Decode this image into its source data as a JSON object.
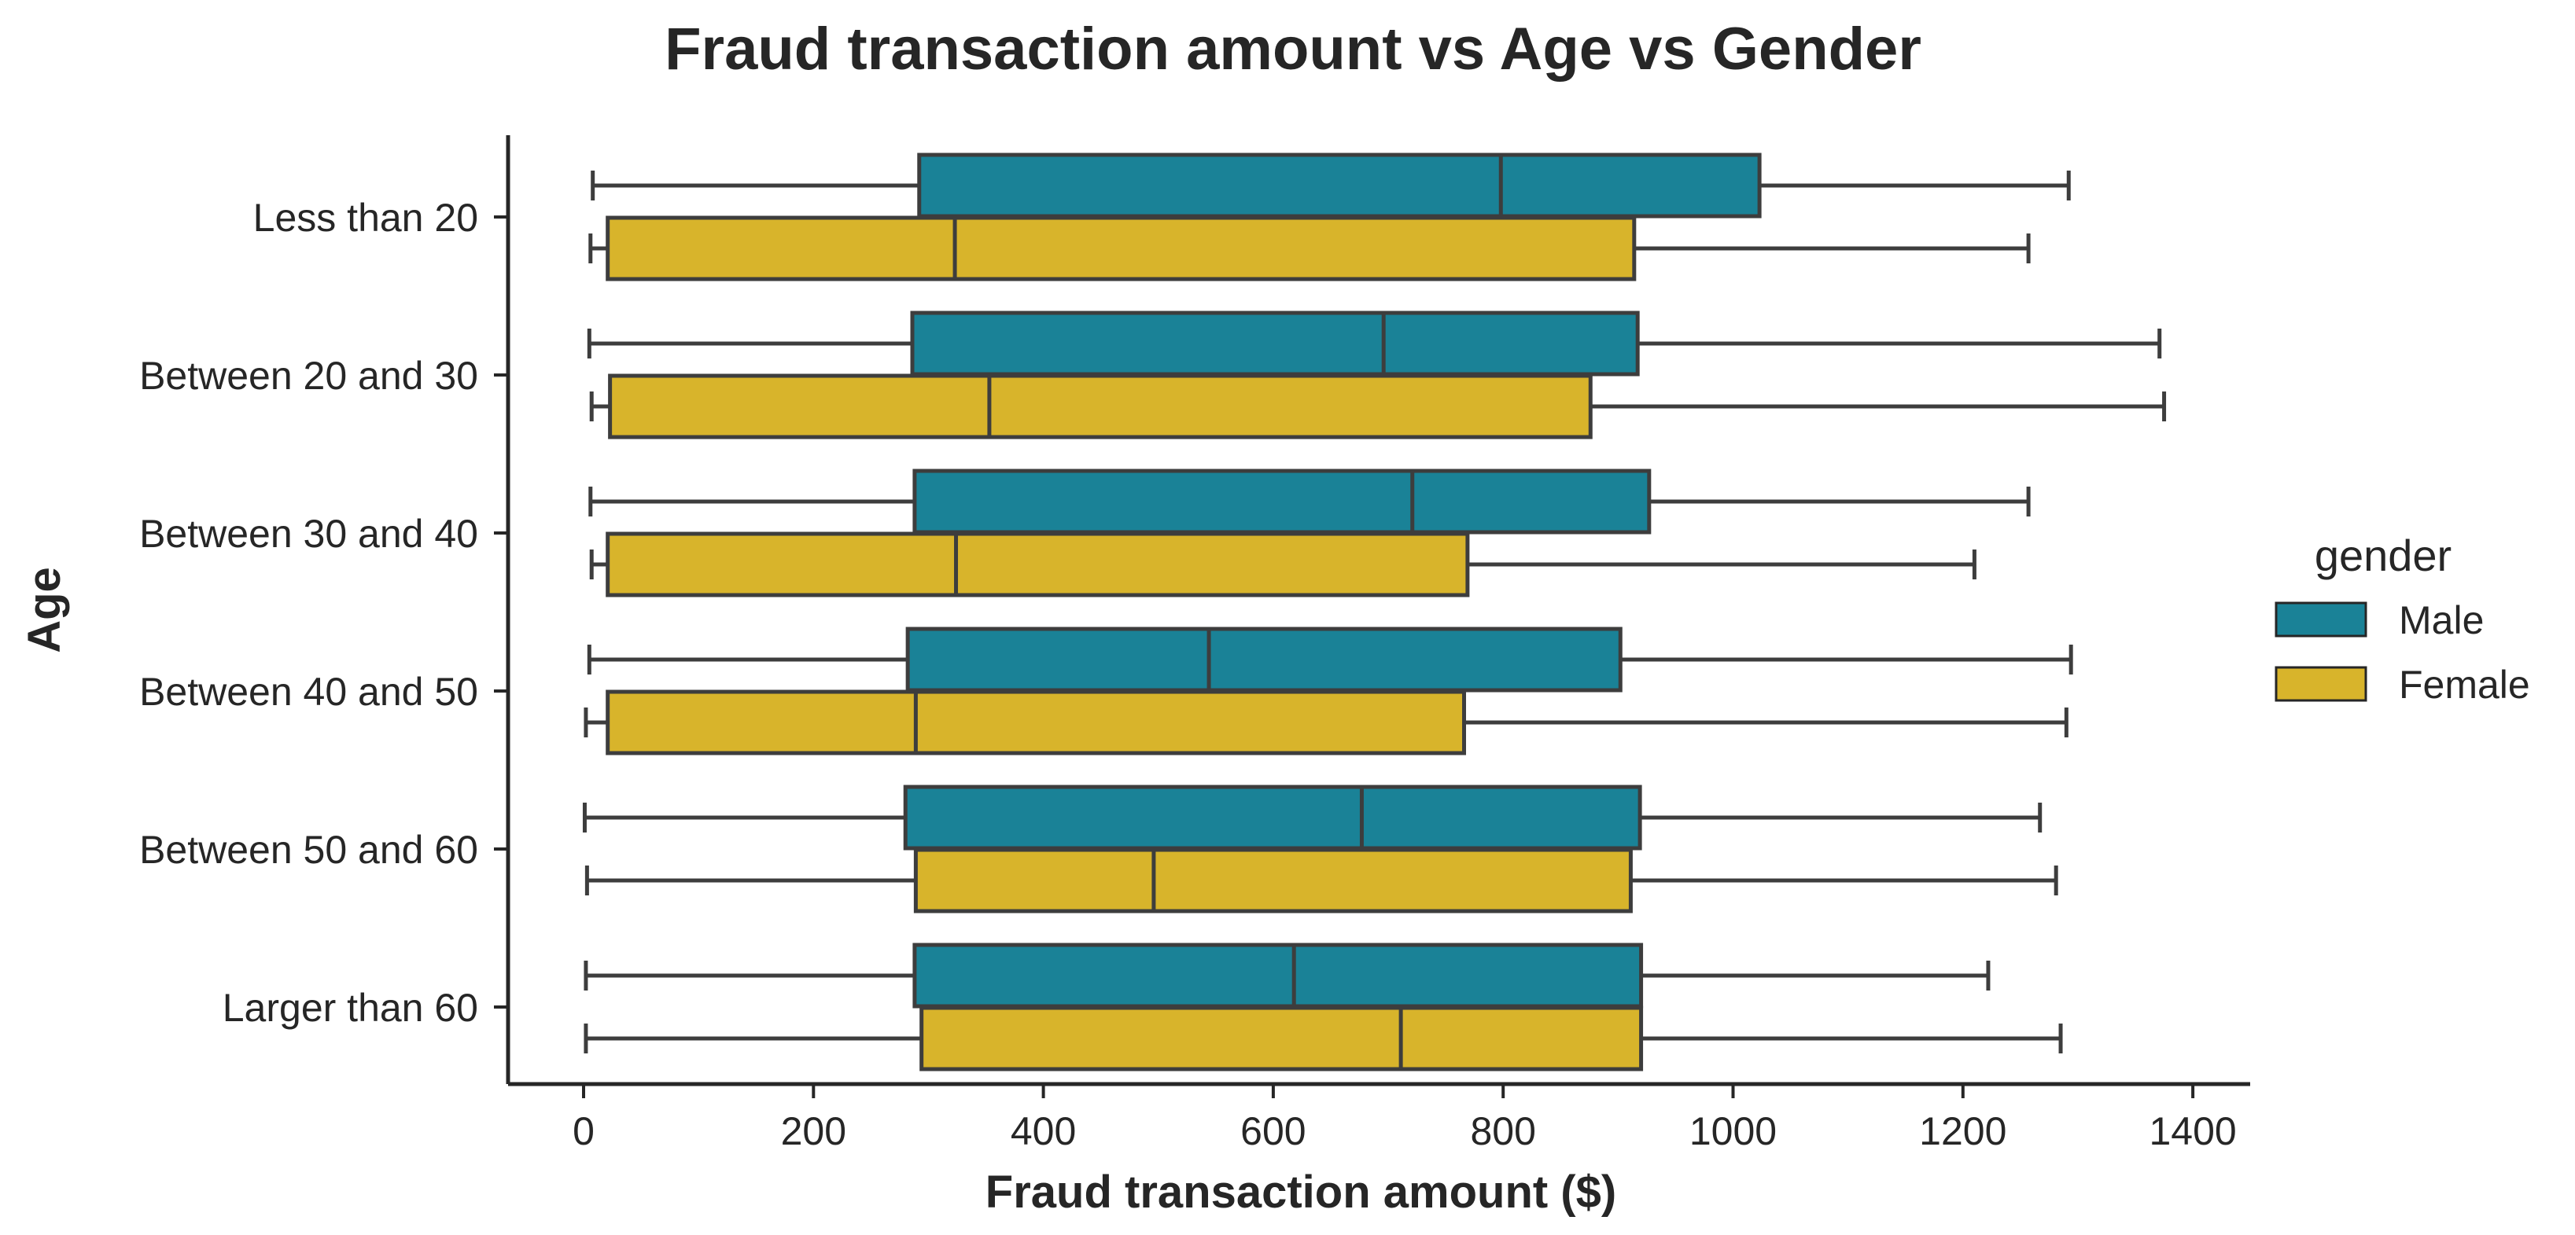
{
  "chart_data": {
    "type": "box",
    "orientation": "horizontal",
    "title": "Fraud transaction amount vs Age vs Gender",
    "xlabel": "Fraud transaction amount ($)",
    "ylabel": "Age",
    "xlim": [
      -68,
      1450
    ],
    "xticks": [
      0,
      200,
      400,
      600,
      800,
      1000,
      1200,
      1400
    ],
    "categories": [
      "Less than 20",
      "Between 20 and 30",
      "Between 30 and 40",
      "Between 40 and 50",
      "Between 50 and 60",
      "Larger than 60"
    ],
    "legend": {
      "title": "gender",
      "position": "right"
    },
    "grid": false,
    "series": [
      {
        "name": "Male",
        "color": "#1a8297",
        "boxes": [
          {
            "whislo": 8,
            "q1": 292,
            "median": 798,
            "q3": 1023,
            "whishi": 1292
          },
          {
            "whislo": 5,
            "q1": 286,
            "median": 696,
            "q3": 917,
            "whishi": 1371
          },
          {
            "whislo": 6,
            "q1": 288,
            "median": 721,
            "q3": 927,
            "whishi": 1257
          },
          {
            "whislo": 5,
            "q1": 282,
            "median": 544,
            "q3": 902,
            "whishi": 1294
          },
          {
            "whislo": 1,
            "q1": 280,
            "median": 677,
            "q3": 919,
            "whishi": 1267
          },
          {
            "whislo": 2,
            "q1": 288,
            "median": 618,
            "q3": 920,
            "whishi": 1222
          }
        ]
      },
      {
        "name": "Female",
        "color": "#d8b42b",
        "boxes": [
          {
            "whislo": 6,
            "q1": 21,
            "median": 323,
            "q3": 914,
            "whishi": 1257
          },
          {
            "whislo": 7,
            "q1": 23,
            "median": 353,
            "q3": 876,
            "whishi": 1375
          },
          {
            "whislo": 7,
            "q1": 21,
            "median": 324,
            "q3": 769,
            "whishi": 1210
          },
          {
            "whislo": 2,
            "q1": 21,
            "median": 289,
            "q3": 766,
            "whishi": 1290
          },
          {
            "whislo": 3,
            "q1": 289,
            "median": 496,
            "q3": 911,
            "whishi": 1281
          },
          {
            "whislo": 2,
            "q1": 294,
            "median": 711,
            "q3": 920,
            "whishi": 1285
          }
        ]
      }
    ]
  }
}
